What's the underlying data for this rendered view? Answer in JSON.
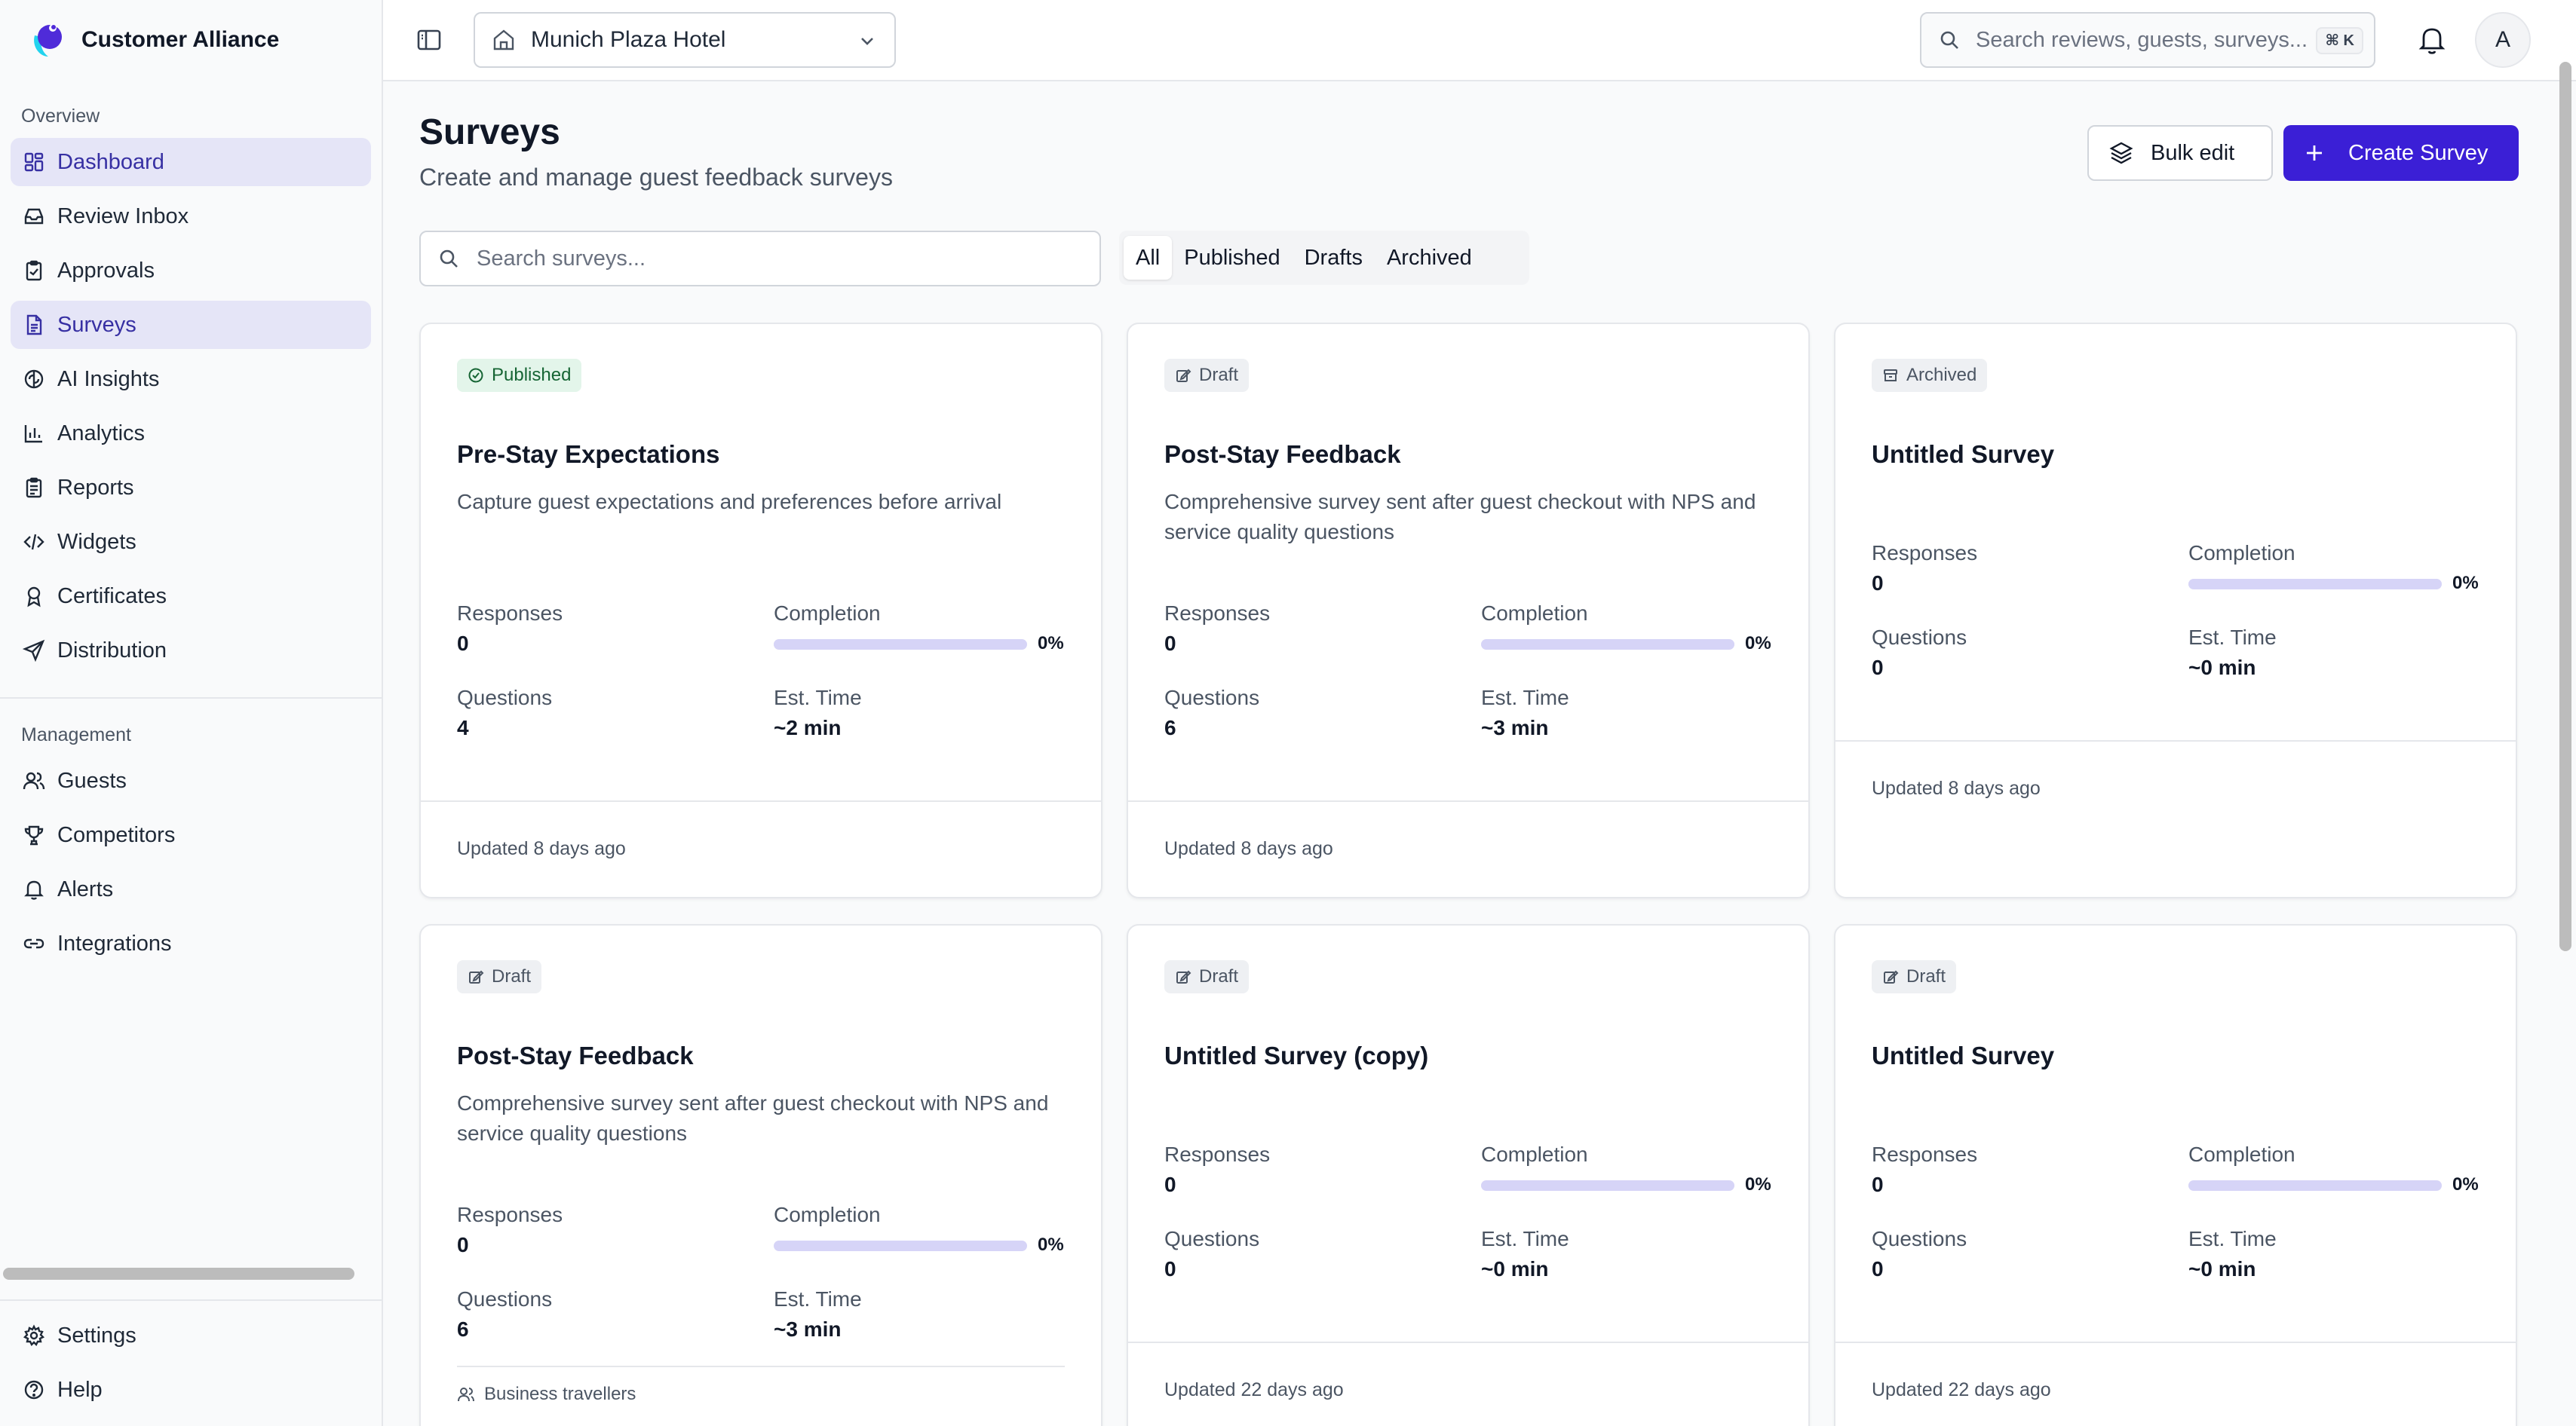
{
  "app": {
    "brand_name": "Customer Alliance"
  },
  "sidebar": {
    "overview_label": "Overview",
    "overview_items": [
      {
        "label": "Dashboard",
        "icon": "dashboard-icon",
        "active": true
      },
      {
        "label": "Review Inbox",
        "icon": "inbox-icon"
      },
      {
        "label": "Approvals",
        "icon": "clipboard-check-icon"
      },
      {
        "label": "Surveys",
        "icon": "file-text-icon",
        "active": true
      },
      {
        "label": "AI Insights",
        "icon": "brain-icon"
      },
      {
        "label": "Analytics",
        "icon": "bar-chart-icon"
      },
      {
        "label": "Reports",
        "icon": "clipboard-list-icon"
      },
      {
        "label": "Widgets",
        "icon": "code-icon"
      },
      {
        "label": "Certificates",
        "icon": "award-icon"
      },
      {
        "label": "Distribution",
        "icon": "send-icon"
      }
    ],
    "management_label": "Management",
    "management_items": [
      {
        "label": "Guests",
        "icon": "users-icon"
      },
      {
        "label": "Competitors",
        "icon": "trophy-icon"
      },
      {
        "label": "Alerts",
        "icon": "bell-icon"
      },
      {
        "label": "Integrations",
        "icon": "link-icon"
      }
    ],
    "bottom_items": [
      {
        "label": "Settings",
        "icon": "gear-icon"
      },
      {
        "label": "Help",
        "icon": "help-circle-icon"
      }
    ]
  },
  "topbar": {
    "hotel": "Munich Plaza Hotel",
    "search_placeholder": "Search reviews, guests, surveys...",
    "shortcut": "⌘ K",
    "avatar_initial": "A"
  },
  "page": {
    "title": "Surveys",
    "subtitle": "Create and manage guest feedback surveys",
    "bulk_edit_label": "Bulk edit",
    "create_label": "Create Survey",
    "search_placeholder": "Search surveys...",
    "filters": [
      "All",
      "Published",
      "Drafts",
      "Archived"
    ],
    "active_filter": "All"
  },
  "labels": {
    "responses": "Responses",
    "completion": "Completion",
    "questions": "Questions",
    "est_time": "Est. Time"
  },
  "surveys": [
    {
      "status": "Published",
      "title": "Pre-Stay Expectations",
      "description": "Capture guest expectations and preferences before arrival",
      "responses": "0",
      "completion": "0%",
      "completion_value": 0,
      "questions": "4",
      "est_time": "~2 min",
      "updated": "Updated 8 days ago"
    },
    {
      "status": "Draft",
      "title": "Post-Stay Feedback",
      "description": "Comprehensive survey sent after guest checkout with NPS and service quality questions",
      "responses": "0",
      "completion": "0%",
      "completion_value": 0,
      "questions": "6",
      "est_time": "~3 min",
      "updated": "Updated 8 days ago"
    },
    {
      "status": "Archived",
      "title": "Untitled Survey",
      "description": "",
      "responses": "0",
      "completion": "0%",
      "completion_value": 0,
      "questions": "0",
      "est_time": "~0 min",
      "updated": "Updated 8 days ago"
    },
    {
      "status": "Draft",
      "title": "Post-Stay Feedback",
      "description": "Comprehensive survey sent after guest checkout with NPS and service quality questions",
      "responses": "0",
      "completion": "0%",
      "completion_value": 0,
      "questions": "6",
      "est_time": "~3 min",
      "segment": "Business travellers"
    },
    {
      "status": "Draft",
      "title": "Untitled Survey (copy)",
      "description": "",
      "responses": "0",
      "completion": "0%",
      "completion_value": 0,
      "questions": "0",
      "est_time": "~0 min",
      "updated": "Updated 22 days ago"
    },
    {
      "status": "Draft",
      "title": "Untitled Survey",
      "description": "",
      "responses": "0",
      "completion": "0%",
      "completion_value": 0,
      "questions": "0",
      "est_time": "~0 min",
      "updated": "Updated 22 days ago"
    }
  ],
  "colors": {
    "accent": "#3b1fd6",
    "active_nav_bg": "#e5e5f7",
    "published_bg": "#e3f5ea",
    "published_fg": "#166534",
    "progress_track": "#d6d4f7"
  }
}
